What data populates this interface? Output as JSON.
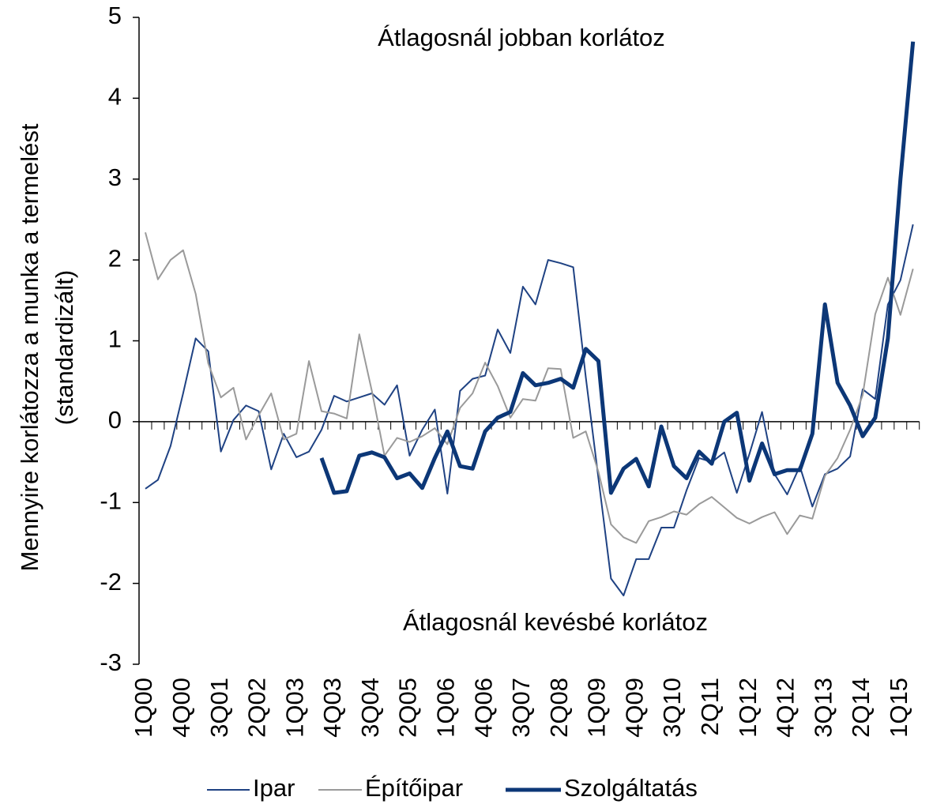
{
  "chart_data": {
    "type": "line",
    "annotations": [
      "Átlagosnál jobban korlátoz",
      "Átlagosnál kevésbé korlátoz"
    ],
    "y_label": [
      "Mennyire korlátozza a munka a termelést",
      "(standardizált)"
    ],
    "categories": [
      "1Q00",
      null,
      null,
      "4Q00",
      null,
      null,
      "3Q01",
      null,
      null,
      "2Q02",
      null,
      null,
      "1Q03",
      null,
      null,
      "4Q03",
      null,
      null,
      "3Q04",
      null,
      null,
      "2Q05",
      null,
      null,
      "1Q06",
      null,
      null,
      "4Q06",
      null,
      null,
      "3Q07",
      null,
      null,
      "2Q08",
      null,
      null,
      "1Q09",
      null,
      null,
      "4Q09",
      null,
      null,
      "3Q10",
      null,
      null,
      "2Q11",
      null,
      null,
      "1Q12",
      null,
      null,
      "4Q12",
      null,
      null,
      "3Q13",
      null,
      null,
      "2Q14",
      null,
      null,
      "1Q15",
      null
    ],
    "ylim": [
      -3,
      5
    ],
    "yticks": [
      -3,
      -2,
      -1,
      0,
      1,
      2,
      3,
      4,
      5
    ],
    "series": [
      {
        "name": "Ipar",
        "color": "#1f4283",
        "width": 2,
        "values": [
          -0.83,
          -0.72,
          -0.3,
          0.35,
          1.03,
          0.87,
          -0.37,
          0.02,
          0.2,
          0.13,
          -0.59,
          -0.15,
          -0.44,
          -0.37,
          -0.1,
          0.32,
          0.25,
          0.3,
          0.35,
          0.21,
          0.45,
          -0.42,
          -0.1,
          0.15,
          -0.89,
          0.38,
          0.53,
          0.57,
          1.14,
          0.85,
          1.67,
          1.45,
          2.0,
          1.96,
          1.91,
          0.55,
          -0.7,
          -1.94,
          -2.15,
          -1.7,
          -1.7,
          -1.31,
          -1.31,
          -0.85,
          -0.45,
          -0.5,
          -0.38,
          -0.88,
          -0.4,
          0.12,
          -0.65,
          -0.9,
          -0.55,
          -1.05,
          -0.65,
          -0.58,
          -0.43,
          0.4,
          0.28,
          1.45,
          1.75,
          2.44
        ]
      },
      {
        "name": "Építőipar",
        "color": "#9a9a9a",
        "width": 2,
        "values": [
          2.34,
          1.76,
          2.0,
          2.12,
          1.58,
          0.72,
          0.3,
          0.42,
          -0.22,
          0.08,
          0.35,
          -0.22,
          -0.15,
          0.75,
          0.13,
          0.1,
          0.04,
          1.08,
          0.38,
          -0.42,
          -0.2,
          -0.25,
          -0.18,
          -0.08,
          -0.28,
          0.17,
          0.35,
          0.73,
          0.44,
          0.05,
          0.28,
          0.26,
          0.66,
          0.65,
          -0.2,
          -0.12,
          -0.62,
          -1.27,
          -1.43,
          -1.5,
          -1.23,
          -1.18,
          -1.11,
          -1.15,
          -1.02,
          -0.93,
          -1.06,
          -1.19,
          -1.26,
          -1.18,
          -1.12,
          -1.39,
          -1.16,
          -1.2,
          -0.67,
          -0.45,
          -0.1,
          0.33,
          1.33,
          1.78,
          1.32,
          1.89
        ]
      },
      {
        "name": "Szolgáltatás",
        "color": "#0c3777",
        "width": 5,
        "values": [
          null,
          null,
          null,
          null,
          null,
          null,
          null,
          null,
          null,
          null,
          null,
          null,
          null,
          null,
          -0.45,
          -0.88,
          -0.86,
          -0.42,
          -0.38,
          -0.44,
          -0.7,
          -0.64,
          -0.82,
          -0.45,
          -0.12,
          -0.55,
          -0.58,
          -0.12,
          0.05,
          0.12,
          0.6,
          0.45,
          0.48,
          0.53,
          0.42,
          0.9,
          0.75,
          -0.88,
          -0.58,
          -0.46,
          -0.8,
          -0.06,
          -0.55,
          -0.7,
          -0.37,
          -0.52,
          0.0,
          0.11,
          -0.73,
          -0.27,
          -0.65,
          -0.6,
          -0.6,
          -0.15,
          1.45,
          0.48,
          0.2,
          -0.18,
          0.05,
          1.03,
          3.0,
          4.7
        ]
      }
    ]
  }
}
